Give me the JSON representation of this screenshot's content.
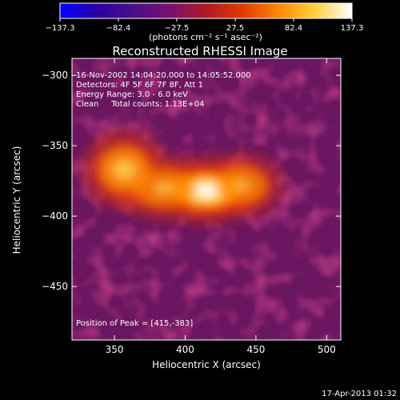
{
  "chart_data": {
    "type": "heatmap",
    "title": "Reconstructed RHESSI Image",
    "xlabel": "Heliocentric X (arcsec)",
    "ylabel": "Heliocentric Y (arcsec)",
    "xlim": [
      320,
      510
    ],
    "ylim": [
      -488,
      -288
    ],
    "xticks": [
      350,
      400,
      450,
      500
    ],
    "xtick_labels": [
      "350",
      "400",
      "450",
      "500"
    ],
    "yticks": [
      -300,
      -350,
      -400,
      -450
    ],
    "ytick_labels": [
      "−300",
      "−350",
      "−400",
      "−450"
    ],
    "colorbar": {
      "range": [
        -137.3,
        137.3
      ],
      "ticks": [
        -137.3,
        -82.4,
        -27.5,
        27.5,
        82.4,
        137.3
      ],
      "tick_labels": [
        "−137.3",
        "−82.4",
        "−27.5",
        "27.5",
        "82.4",
        "137.3"
      ],
      "units_label": "(photons cm⁻² s⁻¹ asec⁻²)",
      "colormap": [
        "#0000ff",
        "#2a00a8",
        "#4a0e8a",
        "#7a1070",
        "#b01828",
        "#e03a00",
        "#ff8800",
        "#ffd040",
        "#ffffff"
      ]
    },
    "annotations": [
      "16-Nov-2002 14:04:20.000 to 14:05:52.000",
      "Detectors: 4F 5F 6F 7F 8F, Att 1",
      "Energy Range: 3.0 - 6.0 keV",
      "Clean     Total counts: 1.13E+04"
    ],
    "peak_label": "Position of Peak = [415,-383]",
    "peak": [
      415,
      -383
    ],
    "peak_value": 137.3,
    "sources": [
      {
        "x": 415,
        "y": -382,
        "value": 137.3,
        "sx": 17,
        "sy": 9
      },
      {
        "x": 357,
        "y": -367,
        "value": 88,
        "sx": 13,
        "sy": 11
      },
      {
        "x": 385,
        "y": -380,
        "value": 60,
        "sx": 16,
        "sy": 9
      },
      {
        "x": 440,
        "y": -378,
        "value": 55,
        "sx": 13,
        "sy": 9
      }
    ],
    "grid": false
  },
  "footer_date": "17-Apr-2013 01:32"
}
